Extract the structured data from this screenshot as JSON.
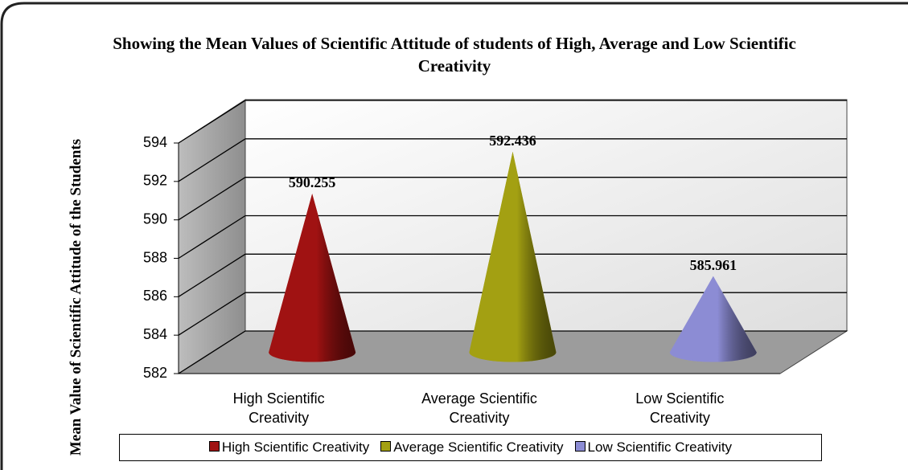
{
  "chart_data": {
    "type": "cone",
    "title": "Showing the Mean Values of Scientific Attitude of students of High, Average and Low Scientific Creativity",
    "y_label": "Mean Value of Scientific Attitude of the Students",
    "categories": [
      "High Scientific Creativity",
      "Average  Scientific Creativity",
      "Low  Scientific Creativity"
    ],
    "values": [
      590.255,
      592.436,
      585.961
    ],
    "colors": [
      "#a01212",
      "#a3a012",
      "#8c8cd4"
    ],
    "ylim": [
      582,
      594
    ],
    "yticks": [
      582,
      584,
      586,
      588,
      590,
      592,
      594
    ],
    "grid": true,
    "legend": "bottom"
  }
}
